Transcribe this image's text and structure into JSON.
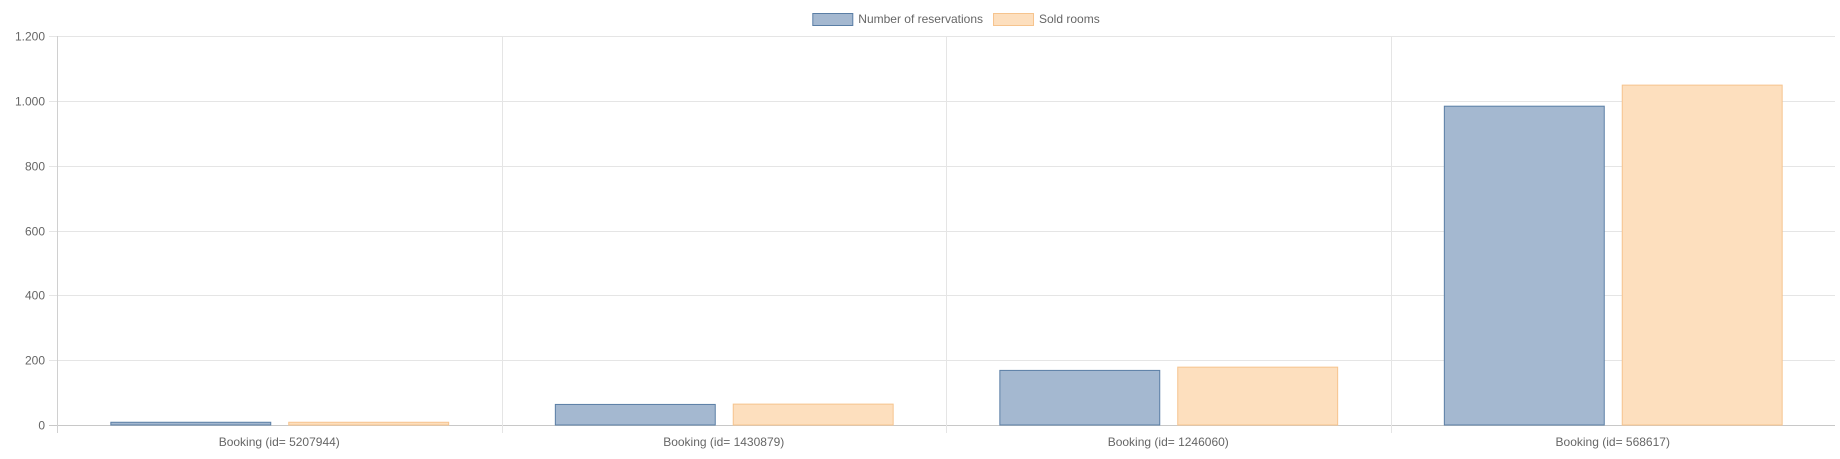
{
  "chart_data": {
    "type": "bar",
    "title": "",
    "xlabel": "",
    "ylabel": "",
    "categories": [
      "Booking (id= 5207944)",
      "Booking (id= 1430879)",
      "Booking (id= 1246060)",
      "Booking (id= 568617)"
    ],
    "series": [
      {
        "name": "Number of reservations",
        "values": [
          10,
          65,
          170,
          985
        ],
        "fill": "#a4b8d0",
        "stroke": "#5a7ea5"
      },
      {
        "name": "Sold rooms",
        "values": [
          10,
          66,
          180,
          1050
        ],
        "fill": "#fddfbe",
        "stroke": "#f6c48e"
      }
    ],
    "ylim": [
      0,
      1200
    ],
    "yticks": [
      0,
      200,
      400,
      600,
      800,
      1000,
      1200
    ],
    "ytick_labels": [
      "0",
      "200",
      "400",
      "600",
      "800",
      "1.000",
      "1.200"
    ],
    "grid": true,
    "legend_position": "top-center"
  }
}
